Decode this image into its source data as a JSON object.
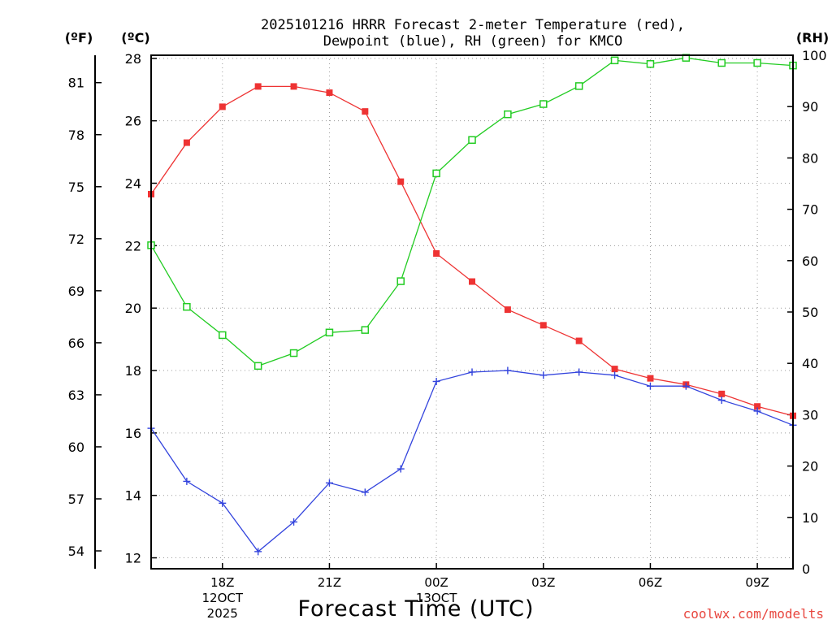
{
  "chart_data": {
    "type": "line",
    "title_line1": "2025101216 HRRR Forecast 2-meter Temperature (red),",
    "title_line2": "Dewpoint (blue), RH (green) for KMCO",
    "xlabel": "Forecast Time (UTC)",
    "credit": "coolwx.com/modelts",
    "units": {
      "fahrenheit": "(ºF)",
      "celsius": "(ºC)",
      "rh": "(RH)"
    },
    "x_hours": [
      16,
      17,
      18,
      19,
      20,
      21,
      22,
      23,
      24,
      25,
      26,
      27,
      28,
      29,
      30,
      31,
      32,
      33,
      34
    ],
    "x_ticks": [
      {
        "hour": 18,
        "label": "18Z",
        "sub1": "12OCT",
        "sub2": "2025"
      },
      {
        "hour": 21,
        "label": "21Z",
        "sub1": "",
        "sub2": ""
      },
      {
        "hour": 24,
        "label": "00Z",
        "sub1": "13OCT",
        "sub2": ""
      },
      {
        "hour": 27,
        "label": "03Z",
        "sub1": "",
        "sub2": ""
      },
      {
        "hour": 30,
        "label": "06Z",
        "sub1": "",
        "sub2": ""
      },
      {
        "hour": 33,
        "label": "09Z",
        "sub1": "",
        "sub2": ""
      }
    ],
    "xlim": [
      16,
      34
    ],
    "celsius_range": [
      11.65,
      28.1
    ],
    "celsius_ticks": [
      12,
      14,
      16,
      18,
      20,
      22,
      24,
      26,
      28
    ],
    "fahrenheit_ticks": [
      54,
      57,
      60,
      63,
      66,
      69,
      72,
      75,
      78,
      81
    ],
    "rh_range": [
      0,
      100
    ],
    "rh_ticks": [
      0,
      10,
      20,
      30,
      40,
      50,
      60,
      70,
      80,
      90,
      100
    ],
    "series": [
      {
        "name": "Temperature",
        "unit": "C",
        "color": "#ee3333",
        "marker": "filled-square",
        "values": [
          23.65,
          25.3,
          26.45,
          27.1,
          27.1,
          26.9,
          26.3,
          24.05,
          21.75,
          20.85,
          19.95,
          19.45,
          18.95,
          18.05,
          17.75,
          17.55,
          17.25,
          16.85,
          16.55
        ]
      },
      {
        "name": "Dewpoint",
        "unit": "C",
        "color": "#3344dd",
        "marker": "plus",
        "values": [
          16.15,
          14.45,
          13.75,
          12.2,
          13.15,
          14.4,
          14.1,
          14.85,
          17.65,
          17.95,
          18.0,
          17.85,
          17.95,
          17.85,
          17.5,
          17.5,
          17.05,
          16.7,
          16.25
        ]
      },
      {
        "name": "RH",
        "unit": "%",
        "color": "#22cc22",
        "marker": "open-square",
        "values": [
          63,
          51,
          45.5,
          39.5,
          42,
          46,
          46.5,
          56,
          77,
          83.5,
          88.5,
          90.5,
          94,
          99,
          98.3,
          99.5,
          98.5,
          98.5,
          98
        ]
      }
    ]
  }
}
